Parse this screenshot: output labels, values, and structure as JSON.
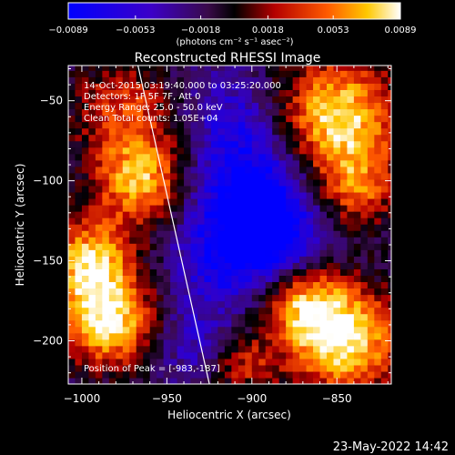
{
  "chart_data": {
    "type": "heatmap",
    "title": "Reconstructed RHESSI Image",
    "xlabel": "Heliocentric X (arcsec)",
    "ylabel": "Heliocentric Y (arcsec)",
    "xlim": [
      -1008,
      -818
    ],
    "ylim": [
      -227,
      -28
    ],
    "x_ticks": [
      -1000,
      -950,
      -900,
      -850
    ],
    "x_tick_labels": [
      "−1000",
      "−950",
      "−900",
      "−850"
    ],
    "y_ticks": [
      -50,
      -100,
      -150,
      -200
    ],
    "y_tick_labels": [
      "−50",
      "−100",
      "−150",
      "−200"
    ],
    "colorbar": {
      "ticks": [
        -0.0089,
        -0.0053,
        -0.0018,
        0.0018,
        0.0053,
        0.0089
      ],
      "tick_labels": [
        "−0.0089",
        "−0.0053",
        "−0.0018",
        "0.0018",
        "0.0053",
        "0.0089"
      ],
      "unit_label": "(photons cm⁻² s⁻¹ asec⁻²)",
      "range": [
        -0.0089,
        0.0089
      ]
    },
    "annotations": [
      "14-Oct-2015 03:19:40.000 to 03:25:20.000",
      "Detectors: 1F 5F 7F, Att 0",
      "Energy Range: 25.0 - 50.0 keV",
      "Clean    Total counts: 1.05E+04"
    ],
    "peak_label": "Position of Peak = [-983,-187]",
    "peak": [
      -983,
      -187
    ],
    "limb_line": [
      [
        -967,
        -28
      ],
      [
        -925,
        -227
      ]
    ],
    "grid": false,
    "colors": {
      "background": "#000000",
      "foreground": "#ffffff"
    }
  },
  "footer": {
    "timestamp": "23-May-2022 14:42"
  }
}
